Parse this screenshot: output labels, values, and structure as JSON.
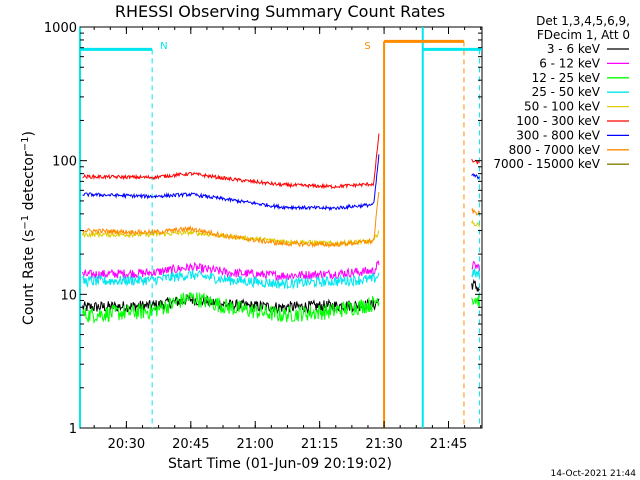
{
  "chart_data": {
    "type": "line",
    "title": "RHESSI Observing Summary Count Rates",
    "xlabel": "Start Time (01-Jun-09 20:19:02)",
    "ylabel": "Count Rate (s⁻¹ detector⁻¹)",
    "ylabel_parts": {
      "base": "Count Rate (s",
      "sup1": "−1",
      "mid": " detector",
      "sup2": "−1",
      "end": ")"
    },
    "yscale": "log",
    "ylim": [
      1,
      1000
    ],
    "xlim_minutes": [
      20.32,
      21.88
    ],
    "x_ticks": [
      {
        "label": "20:30",
        "t": 20.5
      },
      {
        "label": "20:45",
        "t": 20.75
      },
      {
        "label": "21:00",
        "t": 21.0
      },
      {
        "label": "21:15",
        "t": 21.25
      },
      {
        "label": "21:30",
        "t": 21.5
      },
      {
        "label": "21:45",
        "t": 21.75
      }
    ],
    "y_ticks": [
      {
        "label": "1",
        "v": 1
      },
      {
        "label": "10",
        "v": 10
      },
      {
        "label": "100",
        "v": 100
      },
      {
        "label": "1000",
        "v": 1000
      }
    ],
    "legend_header": [
      "Det 1,3,4,5,6,9,",
      "FDecim 1, Att 0"
    ],
    "legend_position": "outside-right",
    "flag_labels": [
      {
        "text": "N",
        "t": 20.6,
        "color": "#00e5ee"
      },
      {
        "text": "S",
        "t": 21.47,
        "color": "#ff8c00"
      }
    ],
    "series": [
      {
        "name": "3 - 6 keV",
        "color": "#000000",
        "segments": [
          {
            "t0": 20.33,
            "t1": 21.48,
            "points": [
              [
                20.33,
                8.0
              ],
              [
                20.6,
                8.2
              ],
              [
                20.75,
                9.2
              ],
              [
                20.9,
                8.3
              ],
              [
                21.1,
                8.0
              ],
              [
                21.3,
                8.2
              ],
              [
                21.46,
                8.3
              ],
              [
                21.48,
                9.0
              ]
            ]
          },
          {
            "t0": 21.84,
            "t1": 21.87,
            "points": [
              [
                21.84,
                12.0
              ],
              [
                21.87,
                11.0
              ]
            ]
          }
        ]
      },
      {
        "name": "6 - 12 keV",
        "color": "#ff00ff",
        "segments": [
          {
            "t0": 20.33,
            "t1": 21.48,
            "points": [
              [
                20.33,
                14.0
              ],
              [
                20.6,
                14.5
              ],
              [
                20.75,
                16.0
              ],
              [
                20.9,
                14.5
              ],
              [
                21.1,
                13.8
              ],
              [
                21.3,
                14.2
              ],
              [
                21.46,
                15.0
              ],
              [
                21.48,
                17.0
              ]
            ]
          },
          {
            "t0": 21.84,
            "t1": 21.87,
            "points": [
              [
                21.84,
                16.5
              ],
              [
                21.87,
                16.0
              ]
            ]
          }
        ]
      },
      {
        "name": "12 - 25 keV",
        "color": "#00ff00",
        "segments": [
          {
            "t0": 20.33,
            "t1": 21.48,
            "points": [
              [
                20.33,
                7.0
              ],
              [
                20.6,
                7.5
              ],
              [
                20.75,
                9.5
              ],
              [
                20.9,
                8.0
              ],
              [
                21.1,
                7.0
              ],
              [
                21.3,
                7.5
              ],
              [
                21.46,
                8.5
              ],
              [
                21.48,
                9.5
              ]
            ]
          },
          {
            "t0": 21.84,
            "t1": 21.87,
            "points": [
              [
                21.84,
                9.5
              ],
              [
                21.87,
                9.0
              ]
            ]
          }
        ]
      },
      {
        "name": "25 - 50 keV",
        "color": "#00e5ee",
        "segments": [
          {
            "t0": 20.33,
            "t1": 21.48,
            "points": [
              [
                20.33,
                12.5
              ],
              [
                20.6,
                12.8
              ],
              [
                20.75,
                14.0
              ],
              [
                20.9,
                12.8
              ],
              [
                21.1,
                12.0
              ],
              [
                21.3,
                12.5
              ],
              [
                21.46,
                13.0
              ],
              [
                21.48,
                14.0
              ]
            ]
          },
          {
            "t0": 21.84,
            "t1": 21.87,
            "points": [
              [
                21.84,
                14.5
              ],
              [
                21.87,
                14.0
              ]
            ]
          }
        ]
      },
      {
        "name": "50 - 100 keV",
        "color": "#ddcc00",
        "segments": [
          {
            "t0": 20.33,
            "t1": 21.48,
            "points": [
              [
                20.33,
                28.0
              ],
              [
                20.6,
                28.0
              ],
              [
                20.75,
                29.0
              ],
              [
                20.9,
                27.0
              ],
              [
                21.1,
                25.0
              ],
              [
                21.3,
                24.0
              ],
              [
                21.46,
                25.0
              ],
              [
                21.48,
                30.0
              ]
            ]
          },
          {
            "t0": 21.84,
            "t1": 21.87,
            "points": [
              [
                21.84,
                34.0
              ],
              [
                21.87,
                33.0
              ]
            ]
          }
        ]
      },
      {
        "name": "100 - 300 keV",
        "color": "#ff0000",
        "segments": [
          {
            "t0": 20.33,
            "t1": 21.48,
            "points": [
              [
                20.33,
                76.0
              ],
              [
                20.6,
                75.0
              ],
              [
                20.75,
                80.0
              ],
              [
                20.9,
                73.0
              ],
              [
                21.1,
                66.0
              ],
              [
                21.3,
                64.0
              ],
              [
                21.46,
                67.0
              ],
              [
                21.48,
                160.0
              ]
            ]
          },
          {
            "t0": 21.84,
            "t1": 21.87,
            "points": [
              [
                21.84,
                100.0
              ],
              [
                21.87,
                96.0
              ]
            ]
          }
        ]
      },
      {
        "name": "300 - 800 keV",
        "color": "#0000ff",
        "segments": [
          {
            "t0": 20.33,
            "t1": 21.48,
            "points": [
              [
                20.33,
                56.0
              ],
              [
                20.6,
                54.0
              ],
              [
                20.75,
                56.0
              ],
              [
                20.9,
                51.0
              ],
              [
                21.1,
                45.0
              ],
              [
                21.3,
                44.0
              ],
              [
                21.46,
                47.0
              ],
              [
                21.48,
                110.0
              ]
            ]
          },
          {
            "t0": 21.84,
            "t1": 21.87,
            "points": [
              [
                21.84,
                78.0
              ],
              [
                21.87,
                75.0
              ]
            ]
          }
        ]
      },
      {
        "name": "800 - 7000 keV",
        "color": "#ff8c00",
        "segments": [
          {
            "t0": 20.33,
            "t1": 21.48,
            "points": [
              [
                20.33,
                30.0
              ],
              [
                20.6,
                29.0
              ],
              [
                20.75,
                31.0
              ],
              [
                20.9,
                27.0
              ],
              [
                21.1,
                24.0
              ],
              [
                21.3,
                23.5
              ],
              [
                21.46,
                25.0
              ],
              [
                21.48,
                60.0
              ]
            ]
          },
          {
            "t0": 21.84,
            "t1": 21.87,
            "points": [
              [
                21.84,
                42.0
              ],
              [
                21.87,
                40.0
              ]
            ]
          }
        ]
      },
      {
        "name": "7000 - 15000 keV",
        "color": "#808000",
        "segments": []
      }
    ],
    "flags": {
      "cyan_high": [
        {
          "t0": 20.32,
          "t1": 20.6,
          "v": 680
        },
        {
          "t0": 21.65,
          "t1": 21.88,
          "v": 680
        }
      ],
      "cyan_dashed": [
        20.6,
        21.87
      ],
      "cyan_solid": [
        20.32,
        21.65
      ],
      "orange_high": [
        {
          "t0": 21.5,
          "t1": 21.81,
          "v": 780
        }
      ],
      "orange_solid": [
        21.5
      ],
      "orange_dashed": [
        21.81
      ]
    }
  },
  "footer": {
    "timestamp": "14-Oct-2021 21:44"
  }
}
